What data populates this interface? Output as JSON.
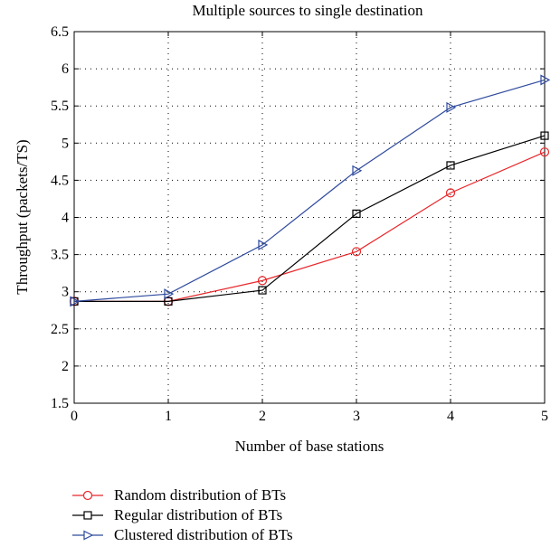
{
  "chart_data": {
    "type": "line",
    "title": "Multiple sources to single destination",
    "xlabel": "Number of base stations",
    "ylabel": "Throughput (packets/TS)",
    "x": [
      0,
      1,
      2,
      3,
      4,
      5
    ],
    "xlim": [
      0,
      5
    ],
    "ylim": [
      1.5,
      6.5
    ],
    "xticks": [
      "0",
      "1",
      "2",
      "3",
      "4",
      "5"
    ],
    "yticks": [
      "1.5",
      "2",
      "2.5",
      "3",
      "3.5",
      "4",
      "4.5",
      "5",
      "5.5",
      "6",
      "6.5"
    ],
    "grid": true,
    "legend_position": "below",
    "series": [
      {
        "name": "Random distribution of BTs",
        "color": "#e8262a",
        "marker": "circle",
        "values": [
          2.87,
          2.87,
          3.15,
          3.54,
          4.33,
          4.88
        ]
      },
      {
        "name": "Regular distribution of BTs",
        "color": "#000000",
        "marker": "square",
        "values": [
          2.87,
          2.87,
          3.02,
          4.05,
          4.7,
          5.1
        ]
      },
      {
        "name": "Clustered distribution of BTs",
        "color": "#2e4a9e",
        "marker": "triangle-right",
        "values": [
          2.87,
          2.97,
          3.63,
          4.63,
          5.48,
          5.85
        ]
      }
    ]
  }
}
